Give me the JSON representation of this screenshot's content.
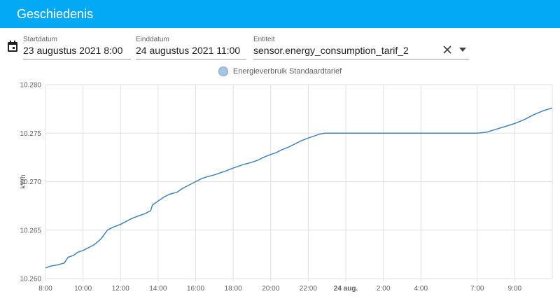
{
  "app": {
    "title": "Geschiedenis"
  },
  "icons": {
    "calendar": "calendar-icon",
    "clear": "close-icon",
    "dropdown": "triangle-down-icon"
  },
  "colors": {
    "appbar": "#03a9f4",
    "line": "#4682b4"
  },
  "filters": {
    "start_label": "Startdatum",
    "start_value": "23 augustus 2021 8:00",
    "end_label": "Einddatum",
    "end_value": "24 augustus 2021 11:00",
    "entity_label": "Entiteit",
    "entity_value": "sensor.energy_consumption_tarif_2"
  },
  "chart_data": {
    "type": "line",
    "ylabel": "kWh",
    "ylim": [
      10.26,
      10.28
    ],
    "yticks": [
      "10.260",
      "10.265",
      "10.270",
      "10.275",
      "10.280"
    ],
    "xlim_hours": [
      8,
      35
    ],
    "xticks": [
      {
        "h": 8,
        "label": "8:00"
      },
      {
        "h": 10,
        "label": "10:00"
      },
      {
        "h": 12,
        "label": "12:00"
      },
      {
        "h": 14,
        "label": "14:00"
      },
      {
        "h": 16,
        "label": "16:00"
      },
      {
        "h": 18,
        "label": "18:00"
      },
      {
        "h": 20,
        "label": "20:00"
      },
      {
        "h": 22,
        "label": "22:00"
      },
      {
        "h": 24,
        "label": "24 aug.",
        "bold": true
      },
      {
        "h": 26,
        "label": "2:00"
      },
      {
        "h": 28,
        "label": "4:00"
      },
      {
        "h": 31,
        "label": "7:00"
      },
      {
        "h": 33,
        "label": "9:00"
      }
    ],
    "grid": true,
    "legend_position": "top-center",
    "series": [
      {
        "name": "Energieverbruik Standaardtarief",
        "x": [
          8.0,
          8.3,
          8.6,
          9.0,
          9.2,
          9.5,
          9.7,
          10.0,
          10.3,
          10.6,
          10.9,
          11.0,
          11.3,
          11.6,
          12.0,
          12.3,
          12.6,
          13.0,
          13.3,
          13.6,
          13.7,
          14.0,
          14.3,
          14.6,
          15.0,
          15.3,
          15.6,
          16.0,
          16.3,
          16.6,
          17.0,
          17.3,
          17.6,
          18.0,
          18.3,
          18.6,
          19.0,
          19.3,
          19.6,
          20.0,
          20.3,
          20.6,
          21.0,
          21.3,
          21.6,
          22.0,
          22.3,
          22.6,
          22.9,
          24.0,
          26.0,
          28.0,
          30.0,
          31.0,
          31.5,
          32.0,
          32.5,
          33.0,
          33.5,
          34.0,
          34.5,
          35.0
        ],
        "values": [
          10.2611,
          10.2613,
          10.2614,
          10.2616,
          10.2622,
          10.2624,
          10.2627,
          10.2629,
          10.2632,
          10.2635,
          10.264,
          10.2642,
          10.265,
          10.2653,
          10.2656,
          10.2659,
          10.2662,
          10.2665,
          10.2667,
          10.267,
          10.2676,
          10.268,
          10.2684,
          10.2687,
          10.2689,
          10.2693,
          10.2696,
          10.27,
          10.2703,
          10.2705,
          10.2707,
          10.2709,
          10.2711,
          10.2714,
          10.2716,
          10.2718,
          10.272,
          10.2722,
          10.2725,
          10.2728,
          10.273,
          10.2733,
          10.2736,
          10.2739,
          10.2742,
          10.2745,
          10.2747,
          10.2749,
          10.275,
          10.275,
          10.275,
          10.275,
          10.275,
          10.275,
          10.2751,
          10.2754,
          10.2757,
          10.276,
          10.2764,
          10.2769,
          10.2773,
          10.2776
        ]
      }
    ]
  }
}
